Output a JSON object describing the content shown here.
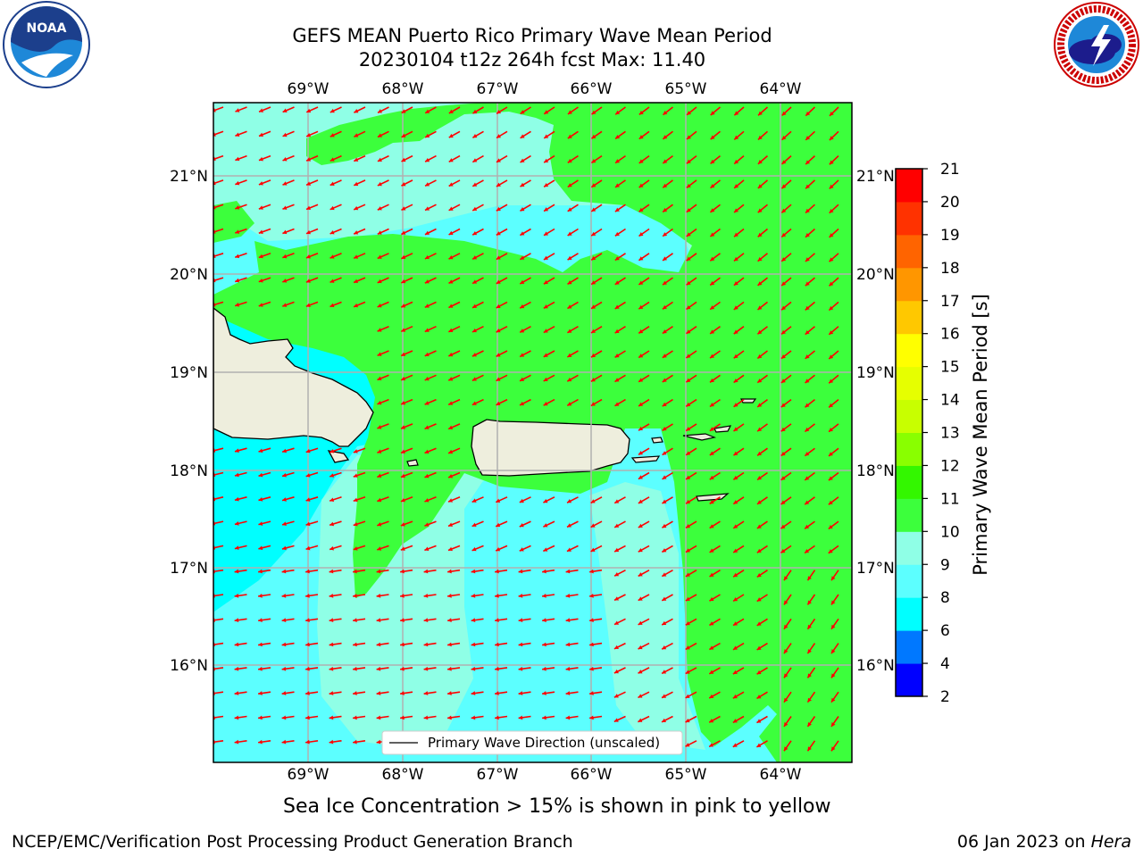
{
  "title": {
    "line1": "GEFS MEAN Puerto Rico Primary Wave Mean Period",
    "line2": "20230104 t12z 264h fcst   Max: 11.40"
  },
  "logos": {
    "left": {
      "name": "noaa-logo",
      "text": "NOAA"
    },
    "right": {
      "name": "nws-logo",
      "text": "NATIONAL WEATHER SERVICE"
    }
  },
  "map": {
    "lon_labels": [
      "69°W",
      "68°W",
      "67°W",
      "66°W",
      "65°W",
      "64°W"
    ],
    "lat_labels": [
      "21°N",
      "20°N",
      "19°N",
      "18°N",
      "17°N",
      "16°N"
    ],
    "legend_label": "Primary Wave Direction (unscaled)",
    "colors": {
      "deep_cyan": "#00ffff",
      "light_cyan": "#5cffff",
      "mint": "#8fffe6",
      "green": "#3cff3c",
      "land": "#eeeedd",
      "arrow": "#ff0000"
    }
  },
  "colorbar": {
    "label": "Primary Wave Mean Period [s]",
    "ticks": [
      "2",
      "4",
      "6",
      "8",
      "9",
      "10",
      "11",
      "12",
      "13",
      "14",
      "15",
      "16",
      "17",
      "18",
      "19",
      "20",
      "21"
    ],
    "colors": [
      "#0000ff",
      "#0078ff",
      "#00ffff",
      "#5cffff",
      "#8fffe6",
      "#3cff3c",
      "#33f700",
      "#89ff00",
      "#c8ff00",
      "#e6ff00",
      "#ffff00",
      "#ffc800",
      "#ff9600",
      "#ff6400",
      "#ff3200",
      "#ff0000"
    ]
  },
  "caption": "Sea Ice Concentration > 15% is shown in pink to yellow",
  "footer": {
    "left": "NCEP/EMC/Verification Post Processing Product Generation Branch",
    "date": "06 Jan 2023 on ",
    "machine": "Hera"
  }
}
